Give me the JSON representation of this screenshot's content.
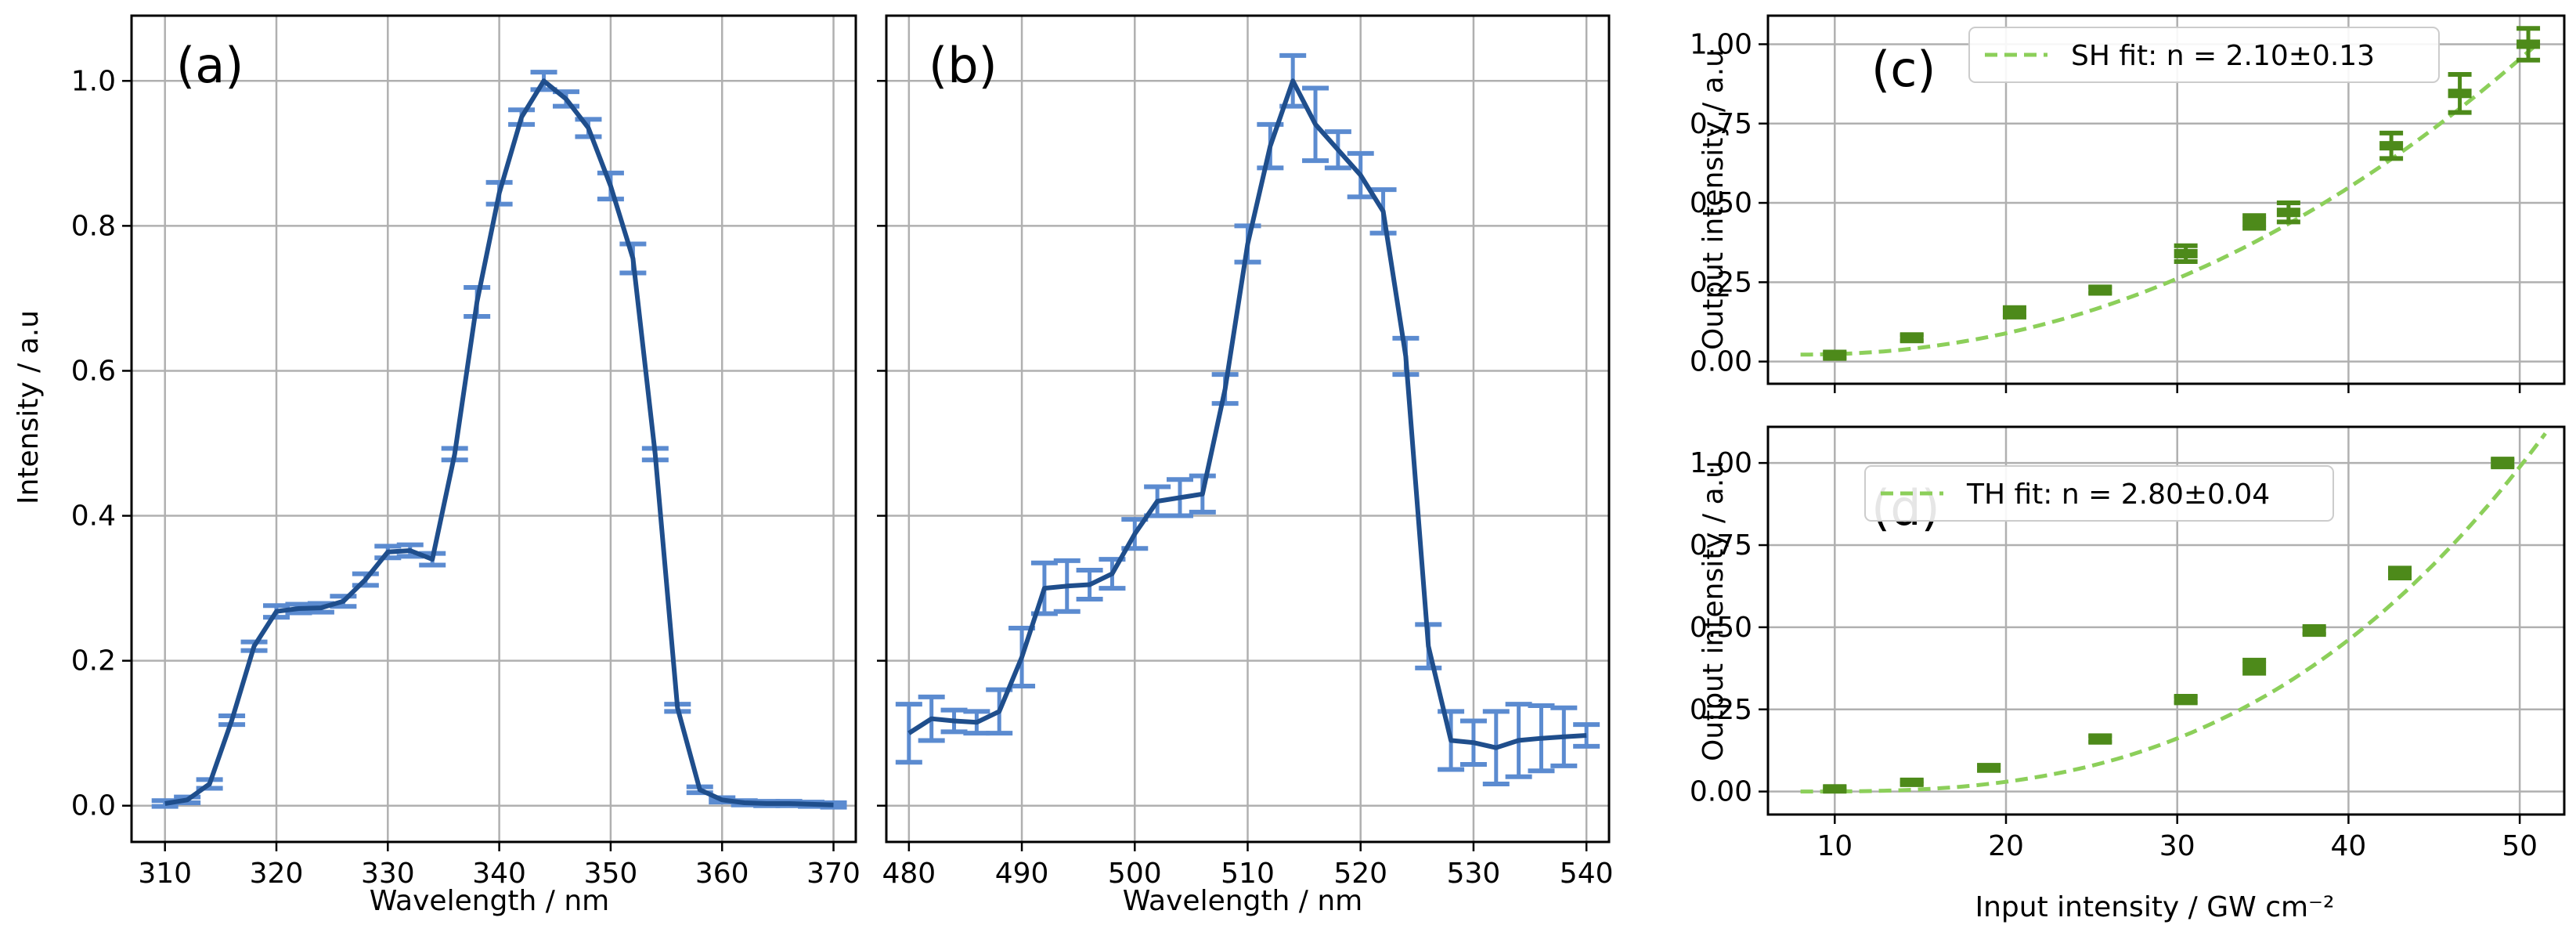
{
  "chart_data": [
    {
      "type": "line",
      "panel_label": "(a)",
      "xlabel": "Wavelength / nm",
      "ylabel": "Intensity / a.u",
      "xlim": [
        307,
        372
      ],
      "ylim": [
        -0.05,
        1.09
      ],
      "xticks": [
        310,
        320,
        330,
        340,
        350,
        360,
        370
      ],
      "xtick_labels": [
        "310",
        "320",
        "330",
        "340",
        "350",
        "360",
        "370"
      ],
      "yticks": [
        0.0,
        0.2,
        0.4,
        0.6,
        0.8,
        1.0
      ],
      "ytick_labels": [
        "0.0",
        "0.2",
        "0.4",
        "0.6",
        "0.8",
        "1.0"
      ],
      "grid": true,
      "line_color": "#1f4e8c",
      "errorbar_color": "#5b8bd0",
      "series": [
        {
          "x": [
            310,
            312,
            314,
            316,
            318,
            320,
            322,
            324,
            326,
            328,
            330,
            332,
            334,
            336,
            338,
            340,
            342,
            344,
            346,
            348,
            350,
            352,
            354,
            356,
            358,
            360,
            362,
            364,
            366,
            368,
            370
          ],
          "y": [
            0.003,
            0.008,
            0.03,
            0.118,
            0.22,
            0.268,
            0.272,
            0.273,
            0.282,
            0.312,
            0.35,
            0.352,
            0.34,
            0.485,
            0.695,
            0.845,
            0.95,
            1.0,
            0.975,
            0.935,
            0.855,
            0.755,
            0.485,
            0.135,
            0.022,
            0.008,
            0.004,
            0.003,
            0.003,
            0.002,
            0.001
          ],
          "err": [
            0.004,
            0.004,
            0.006,
            0.006,
            0.006,
            0.008,
            0.006,
            0.006,
            0.007,
            0.008,
            0.008,
            0.008,
            0.008,
            0.008,
            0.02,
            0.015,
            0.01,
            0.012,
            0.01,
            0.012,
            0.018,
            0.02,
            0.008,
            0.005,
            0.004,
            0.003,
            0.003,
            0.003,
            0.003,
            0.003,
            0.003
          ]
        }
      ]
    },
    {
      "type": "line",
      "panel_label": "(b)",
      "xlabel": "Wavelength / nm",
      "ylabel": "",
      "xlim": [
        478,
        542
      ],
      "ylim": [
        -0.05,
        1.09
      ],
      "xticks": [
        480,
        490,
        500,
        510,
        520,
        530,
        540
      ],
      "xtick_labels": [
        "480",
        "490",
        "500",
        "510",
        "520",
        "530",
        "540"
      ],
      "yticks": [
        0.0,
        0.2,
        0.4,
        0.6,
        0.8,
        1.0
      ],
      "grid": true,
      "line_color": "#1f4e8c",
      "errorbar_color": "#5b8bd0",
      "series": [
        {
          "x": [
            480,
            482,
            484,
            486,
            488,
            490,
            492,
            494,
            496,
            498,
            500,
            502,
            504,
            506,
            508,
            510,
            512,
            514,
            516,
            518,
            520,
            522,
            524,
            526,
            528,
            530,
            532,
            534,
            536,
            538,
            540
          ],
          "y": [
            0.1,
            0.12,
            0.117,
            0.115,
            0.13,
            0.205,
            0.3,
            0.303,
            0.305,
            0.32,
            0.375,
            0.42,
            0.425,
            0.43,
            0.575,
            0.775,
            0.91,
            1.0,
            0.94,
            0.905,
            0.87,
            0.82,
            0.62,
            0.22,
            0.09,
            0.087,
            0.08,
            0.09,
            0.093,
            0.095,
            0.097
          ],
          "err": [
            0.04,
            0.03,
            0.015,
            0.015,
            0.03,
            0.04,
            0.035,
            0.035,
            0.02,
            0.02,
            0.02,
            0.02,
            0.025,
            0.025,
            0.02,
            0.025,
            0.03,
            0.035,
            0.05,
            0.025,
            0.03,
            0.03,
            0.025,
            0.03,
            0.04,
            0.03,
            0.05,
            0.05,
            0.045,
            0.04,
            0.015
          ]
        }
      ]
    },
    {
      "type": "scatter",
      "panel_label": "(c)",
      "xlabel": "",
      "ylabel": "Output intensity / a.u",
      "xlim": [
        6.1,
        52.6
      ],
      "ylim": [
        -0.07,
        1.09
      ],
      "xticks": [
        10,
        20,
        30,
        40,
        50
      ],
      "yticks": [
        0.0,
        0.25,
        0.5,
        0.75,
        1.0
      ],
      "ytick_labels": [
        "0.00",
        "0.25",
        "0.50",
        "0.75",
        "1.00"
      ],
      "grid": true,
      "marker_color": "#4d8a1a",
      "fit_color": "#8ccf5a",
      "legend": {
        "label": "SH fit: n = 2.10±0.13",
        "loc": "upper center"
      },
      "series": [
        {
          "x": [
            10,
            14.5,
            20.5,
            25.5,
            30.5,
            34.5,
            36.5,
            42.5,
            46.5,
            50.5
          ],
          "y": [
            0.02,
            0.075,
            0.155,
            0.225,
            0.34,
            0.44,
            0.47,
            0.68,
            0.845,
            1.0
          ],
          "err": [
            0.01,
            0.01,
            0.015,
            0.01,
            0.025,
            0.02,
            0.03,
            0.04,
            0.06,
            0.05
          ]
        }
      ],
      "fit": {
        "x_range": [
          8,
          51
        ],
        "y_start": 0.022,
        "y_end": 1.0,
        "exponent": 2.1
      }
    },
    {
      "type": "scatter",
      "panel_label": "(d)",
      "xlabel": "Input intensity / GW cm⁻²",
      "ylabel": "Output intensity / a.u",
      "xlim": [
        6.1,
        52.6
      ],
      "ylim": [
        -0.07,
        1.11
      ],
      "xticks": [
        10,
        20,
        30,
        40,
        50
      ],
      "xtick_labels": [
        "10",
        "20",
        "30",
        "40",
        "50"
      ],
      "yticks": [
        0.0,
        0.25,
        0.5,
        0.75,
        1.0
      ],
      "ytick_labels": [
        "0.00",
        "0.25",
        "0.50",
        "0.75",
        "1.00"
      ],
      "grid": true,
      "marker_color": "#4d8a1a",
      "fit_color": "#8ccf5a",
      "legend": {
        "label": "TH fit: n = 2.80±0.04",
        "loc": "upper left"
      },
      "series": [
        {
          "x": [
            10,
            14.5,
            19,
            25.5,
            30.5,
            34.5,
            38,
            43,
            49
          ],
          "y": [
            0.008,
            0.028,
            0.072,
            0.16,
            0.28,
            0.38,
            0.49,
            0.665,
            1.0
          ],
          "err": [
            0.005,
            0.005,
            0.008,
            0.01,
            0.01,
            0.02,
            0.012,
            0.015,
            0.012
          ]
        }
      ],
      "fit": {
        "x_range": [
          8,
          51.5
        ],
        "y_start": 0.0,
        "y_end": 1.09,
        "exponent": 2.8
      }
    }
  ]
}
